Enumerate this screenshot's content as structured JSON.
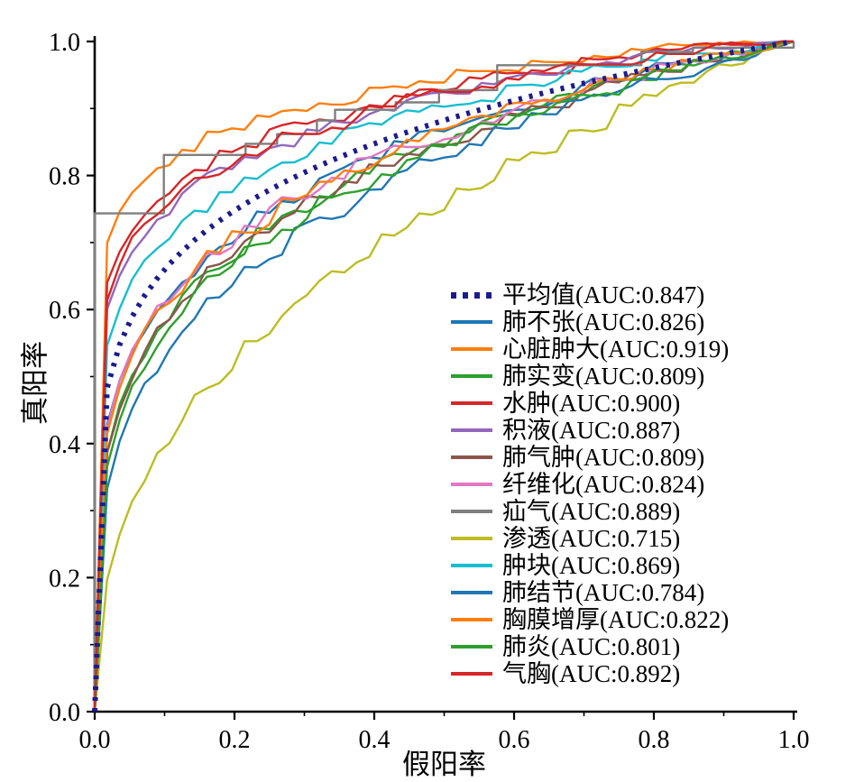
{
  "chart_data": {
    "type": "line",
    "subtype": "roc-curves",
    "title": "",
    "xlabel": "假阳率",
    "ylabel": "真阳率",
    "xlim": [
      0,
      1
    ],
    "ylim": [
      0,
      1
    ],
    "xticks": [
      "0.0",
      "0.2",
      "0.4",
      "0.6",
      "0.8",
      "1.0"
    ],
    "yticks": [
      "0.0",
      "0.2",
      "0.4",
      "0.6",
      "0.8",
      "1.0"
    ],
    "grid": false,
    "legend_position": "inside center-right",
    "curve_model": "ROC curves reconstructed from legend AUC values via y = x^((1-AUC)/AUC) with small empirical jitter",
    "series": [
      {
        "name": "平均值",
        "auc": 0.847,
        "color": "#1b1b8e",
        "style": "dotted",
        "label": "平均值(AUC:0.847)"
      },
      {
        "name": "肺不张",
        "auc": 0.826,
        "color": "#1f77b4",
        "style": "solid",
        "label": "肺不张(AUC:0.826)"
      },
      {
        "name": "心脏肿大",
        "auc": 0.919,
        "color": "#ff7f0e",
        "style": "solid",
        "label": "心脏肿大(AUC:0.919)"
      },
      {
        "name": "肺实变",
        "auc": 0.809,
        "color": "#2ca02c",
        "style": "solid",
        "label": "肺实变(AUC:0.809)"
      },
      {
        "name": "水肿",
        "auc": 0.9,
        "color": "#d62728",
        "style": "solid",
        "label": "水肿(AUC:0.900)"
      },
      {
        "name": "积液",
        "auc": 0.887,
        "color": "#9467bd",
        "style": "solid",
        "label": "积液(AUC:0.887)"
      },
      {
        "name": "肺气肿",
        "auc": 0.809,
        "color": "#8c564b",
        "style": "solid",
        "label": "肺气肿(AUC:0.809)"
      },
      {
        "name": "纤维化",
        "auc": 0.824,
        "color": "#e377c2",
        "style": "solid",
        "label": "纤维化(AUC:0.824)"
      },
      {
        "name": "疝气",
        "auc": 0.889,
        "color": "#7f7f7f",
        "style": "solid",
        "line_shape": "step",
        "label": "疝气(AUC:0.889)"
      },
      {
        "name": "渗透",
        "auc": 0.715,
        "color": "#bcbd22",
        "style": "solid",
        "label": "渗透(AUC:0.715)"
      },
      {
        "name": "肿块",
        "auc": 0.869,
        "color": "#17becf",
        "style": "solid",
        "label": "肿块(AUC:0.869)"
      },
      {
        "name": "肺结节",
        "auc": 0.784,
        "color": "#1f77b4",
        "style": "solid",
        "label": "肺结节(AUC:0.784)"
      },
      {
        "name": "胸膜增厚",
        "auc": 0.822,
        "color": "#ff7f0e",
        "style": "solid",
        "label": "胸膜增厚(AUC:0.822)"
      },
      {
        "name": "肺炎",
        "auc": 0.801,
        "color": "#2ca02c",
        "style": "solid",
        "label": "肺炎(AUC:0.801)"
      },
      {
        "name": "气胸",
        "auc": 0.892,
        "color": "#d62728",
        "style": "solid",
        "label": "气胸(AUC:0.892)"
      }
    ]
  }
}
